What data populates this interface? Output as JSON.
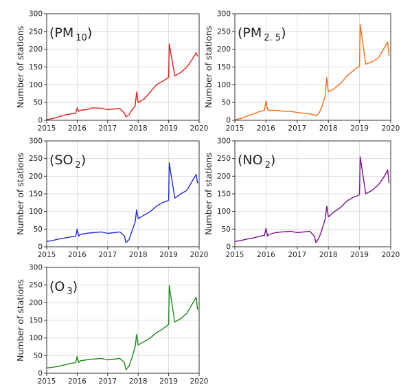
{
  "chart_data": [
    {
      "type": "line",
      "title": "(PM",
      "title_sub": "10",
      "title_close": ")",
      "ylabel": "Number of stations",
      "xlim": [
        2015,
        2020
      ],
      "ylim": [
        0,
        300
      ],
      "x_ticks": [
        "2015",
        "2016",
        "2017",
        "2018",
        "2019",
        "2020"
      ],
      "y_ticks": [
        "0",
        "50",
        "100",
        "150",
        "200",
        "250",
        "300"
      ],
      "grid": true,
      "color": "#e41a1c",
      "x": [
        2015.0,
        2015.2,
        2015.4,
        2015.6,
        2015.8,
        2015.95,
        2016.0,
        2016.05,
        2016.1,
        2016.3,
        2016.5,
        2016.8,
        2017.0,
        2017.2,
        2017.4,
        2017.55,
        2017.6,
        2017.7,
        2017.8,
        2017.9,
        2017.95,
        2018.0,
        2018.2,
        2018.4,
        2018.6,
        2018.8,
        2018.95,
        2019.0,
        2019.02,
        2019.2,
        2019.4,
        2019.6,
        2019.8,
        2019.9,
        2019.95
      ],
      "y": [
        2,
        5,
        10,
        15,
        18,
        20,
        35,
        25,
        28,
        30,
        35,
        34,
        30,
        32,
        33,
        20,
        10,
        15,
        30,
        40,
        80,
        50,
        60,
        80,
        100,
        110,
        118,
        122,
        215,
        125,
        135,
        150,
        175,
        190,
        180
      ]
    },
    {
      "type": "line",
      "title": "(PM",
      "title_sub": "2. 5",
      "title_close": ")",
      "ylabel": "Number of stations",
      "xlim": [
        2015,
        2020
      ],
      "ylim": [
        0,
        300
      ],
      "x_ticks": [
        "2015",
        "2016",
        "2017",
        "2018",
        "2019",
        "2020"
      ],
      "y_ticks": [
        "0",
        "50",
        "100",
        "150",
        "200",
        "250",
        "300"
      ],
      "grid": true,
      "color": "#ff6a13",
      "x": [
        2015.0,
        2015.2,
        2015.4,
        2015.6,
        2015.8,
        2015.95,
        2016.0,
        2016.05,
        2016.1,
        2016.3,
        2016.5,
        2016.8,
        2017.0,
        2017.2,
        2017.4,
        2017.55,
        2017.6,
        2017.7,
        2017.8,
        2017.9,
        2017.95,
        2018.0,
        2018.2,
        2018.4,
        2018.6,
        2018.8,
        2018.95,
        2019.0,
        2019.02,
        2019.2,
        2019.4,
        2019.6,
        2019.8,
        2019.9,
        2019.95
      ],
      "y": [
        2,
        5,
        12,
        18,
        25,
        28,
        55,
        30,
        28,
        28,
        26,
        25,
        22,
        20,
        18,
        15,
        12,
        20,
        40,
        70,
        120,
        80,
        90,
        105,
        125,
        140,
        150,
        152,
        270,
        158,
        165,
        175,
        205,
        220,
        180
      ]
    },
    {
      "type": "line",
      "title": "(SO",
      "title_sub": "2",
      "title_close": ")",
      "ylabel": "Number of stations",
      "xlim": [
        2015,
        2020
      ],
      "ylim": [
        0,
        300
      ],
      "x_ticks": [
        "2015",
        "2016",
        "2017",
        "2018",
        "2019",
        "2020"
      ],
      "y_ticks": [
        "0",
        "50",
        "100",
        "150",
        "200",
        "250",
        "300"
      ],
      "grid": true,
      "color": "#1f2de0",
      "x": [
        2015.0,
        2015.2,
        2015.4,
        2015.6,
        2015.8,
        2015.95,
        2016.0,
        2016.05,
        2016.1,
        2016.3,
        2016.5,
        2016.8,
        2017.0,
        2017.2,
        2017.4,
        2017.55,
        2017.6,
        2017.7,
        2017.8,
        2017.9,
        2017.95,
        2018.0,
        2018.2,
        2018.4,
        2018.6,
        2018.8,
        2018.95,
        2019.0,
        2019.02,
        2019.2,
        2019.4,
        2019.6,
        2019.8,
        2019.9,
        2019.95
      ],
      "y": [
        15,
        18,
        22,
        25,
        28,
        30,
        50,
        30,
        35,
        38,
        40,
        42,
        38,
        40,
        42,
        30,
        12,
        20,
        45,
        70,
        105,
        80,
        90,
        100,
        115,
        125,
        130,
        132,
        238,
        138,
        150,
        160,
        190,
        205,
        180
      ]
    },
    {
      "type": "line",
      "title": "(NO",
      "title_sub": "2",
      "title_close": ")",
      "ylabel": "Number of stations",
      "xlim": [
        2015,
        2020
      ],
      "ylim": [
        0,
        300
      ],
      "x_ticks": [
        "2015",
        "2016",
        "2017",
        "2018",
        "2019",
        "2020"
      ],
      "y_ticks": [
        "0",
        "50",
        "100",
        "150",
        "200",
        "250",
        "300"
      ],
      "grid": true,
      "color": "#7b0f8f",
      "x": [
        2015.0,
        2015.2,
        2015.4,
        2015.6,
        2015.8,
        2015.95,
        2016.0,
        2016.05,
        2016.1,
        2016.3,
        2016.5,
        2016.8,
        2017.0,
        2017.2,
        2017.4,
        2017.55,
        2017.6,
        2017.7,
        2017.8,
        2017.9,
        2017.95,
        2018.0,
        2018.2,
        2018.4,
        2018.6,
        2018.8,
        2018.95,
        2019.0,
        2019.02,
        2019.2,
        2019.4,
        2019.6,
        2019.8,
        2019.9,
        2019.95
      ],
      "y": [
        15,
        18,
        22,
        25,
        30,
        32,
        52,
        30,
        35,
        40,
        42,
        44,
        40,
        42,
        44,
        30,
        12,
        25,
        50,
        80,
        115,
        85,
        100,
        112,
        130,
        140,
        145,
        148,
        255,
        150,
        160,
        175,
        200,
        218,
        180
      ]
    },
    {
      "type": "line",
      "title": "(O",
      "title_sub": "3",
      "title_close": ")",
      "ylabel": "Number of stations",
      "xlim": [
        2015,
        2020
      ],
      "ylim": [
        0,
        300
      ],
      "x_ticks": [
        "2015",
        "2016",
        "2017",
        "2018",
        "2019",
        "2020"
      ],
      "y_ticks": [
        "0",
        "50",
        "100",
        "150",
        "200",
        "250",
        "300"
      ],
      "grid": true,
      "color": "#1d8a1d",
      "x": [
        2015.0,
        2015.2,
        2015.4,
        2015.6,
        2015.8,
        2015.95,
        2016.0,
        2016.05,
        2016.1,
        2016.3,
        2016.5,
        2016.8,
        2017.0,
        2017.2,
        2017.4,
        2017.55,
        2017.6,
        2017.7,
        2017.8,
        2017.9,
        2017.95,
        2018.0,
        2018.2,
        2018.4,
        2018.6,
        2018.8,
        2018.95,
        2019.0,
        2019.02,
        2019.2,
        2019.4,
        2019.6,
        2019.8,
        2019.9,
        2019.95
      ],
      "y": [
        15,
        17,
        20,
        24,
        28,
        30,
        48,
        30,
        35,
        38,
        40,
        42,
        38,
        40,
        42,
        30,
        10,
        20,
        45,
        75,
        110,
        80,
        90,
        100,
        115,
        125,
        135,
        138,
        248,
        145,
        155,
        170,
        200,
        215,
        180
      ]
    }
  ]
}
